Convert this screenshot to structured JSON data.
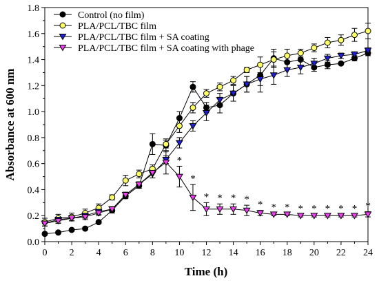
{
  "chart_data": {
    "type": "line",
    "xlabel": "Time (h)",
    "ylabel": "Absorbance at 600 nm",
    "xlim": [
      0,
      24
    ],
    "ylim": [
      0.0,
      1.8
    ],
    "xticks": [
      "0",
      "2",
      "4",
      "6",
      "8",
      "10",
      "12",
      "14",
      "16",
      "18",
      "20",
      "22",
      "24"
    ],
    "yticks": [
      "0.0",
      "0.2",
      "0.4",
      "0.6",
      "0.8",
      "1.0",
      "1.2",
      "1.4",
      "1.6",
      "1.8"
    ],
    "grid": false,
    "legend_position": "top-left",
    "significance_marker": "*",
    "significant_x": [
      10,
      11,
      12,
      13,
      14,
      15,
      16,
      17,
      18,
      19,
      20,
      21,
      22,
      23,
      24
    ],
    "series": [
      {
        "name": "Control (no film)",
        "marker": "circle",
        "color": "#000000",
        "x": [
          0,
          1,
          2,
          3,
          4,
          5,
          6,
          7,
          8,
          9,
          10,
          11,
          12,
          13,
          14,
          15,
          16,
          17,
          18,
          19,
          20,
          21,
          22,
          23,
          24
        ],
        "y": [
          0.06,
          0.07,
          0.09,
          0.1,
          0.15,
          0.24,
          0.35,
          0.43,
          0.75,
          0.74,
          0.95,
          1.19,
          1.03,
          1.05,
          1.14,
          1.21,
          1.28,
          1.41,
          1.38,
          1.4,
          1.34,
          1.36,
          1.37,
          1.41,
          1.45
        ],
        "err": [
          0.01,
          0.01,
          0.01,
          0.01,
          0.01,
          0.02,
          0.02,
          0.02,
          0.08,
          0.05,
          0.05,
          0.04,
          0.04,
          0.06,
          0.06,
          0.06,
          0.08,
          0.07,
          0.05,
          0.05,
          0.03,
          0.03,
          0.01,
          0.02,
          0.02
        ]
      },
      {
        "name": "PLA/PCL/TBC film",
        "marker": "circle",
        "color": "#ffff66",
        "x": [
          0,
          1,
          2,
          3,
          4,
          5,
          6,
          7,
          8,
          9,
          10,
          11,
          12,
          13,
          14,
          15,
          16,
          17,
          18,
          19,
          20,
          21,
          22,
          23,
          24
        ],
        "y": [
          0.15,
          0.18,
          0.19,
          0.22,
          0.26,
          0.34,
          0.47,
          0.52,
          0.56,
          0.75,
          0.89,
          1.03,
          1.14,
          1.19,
          1.24,
          1.32,
          1.36,
          1.4,
          1.43,
          1.45,
          1.49,
          1.53,
          1.55,
          1.59,
          1.62
        ],
        "err": [
          0.03,
          0.03,
          0.03,
          0.03,
          0.03,
          0.02,
          0.04,
          0.03,
          0.03,
          0.03,
          0.05,
          0.04,
          0.03,
          0.03,
          0.03,
          0.02,
          0.06,
          0.06,
          0.05,
          0.03,
          0.03,
          0.04,
          0.04,
          0.05,
          0.06
        ]
      },
      {
        "name": "PLA/PCL/TBC film + SA coating",
        "marker": "triangle-down",
        "color": "#1f1fd6",
        "x": [
          0,
          1,
          2,
          3,
          4,
          5,
          6,
          7,
          8,
          9,
          10,
          11,
          12,
          13,
          14,
          15,
          16,
          17,
          18,
          19,
          20,
          21,
          22,
          23,
          24
        ],
        "y": [
          0.14,
          0.17,
          0.18,
          0.2,
          0.23,
          0.25,
          0.36,
          0.44,
          0.52,
          0.63,
          0.76,
          0.89,
          0.99,
          1.09,
          1.14,
          1.21,
          1.25,
          1.28,
          1.32,
          1.34,
          1.37,
          1.41,
          1.43,
          1.44,
          1.47
        ],
        "err": [
          0.02,
          0.02,
          0.02,
          0.02,
          0.02,
          0.02,
          0.02,
          0.02,
          0.03,
          0.03,
          0.04,
          0.04,
          0.06,
          0.05,
          0.06,
          0.06,
          0.1,
          0.07,
          0.05,
          0.05,
          0.04,
          0.03,
          0.02,
          0.02,
          0.02
        ]
      },
      {
        "name": "PLA/PCL/TBC film + SA coating with phage",
        "marker": "triangle-down",
        "color": "#ee3fee",
        "x": [
          0,
          1,
          2,
          3,
          4,
          5,
          6,
          7,
          8,
          9,
          10,
          11,
          12,
          13,
          14,
          15,
          16,
          17,
          18,
          19,
          20,
          21,
          22,
          23,
          24
        ],
        "y": [
          0.14,
          0.16,
          0.18,
          0.19,
          0.22,
          0.25,
          0.36,
          0.44,
          0.53,
          0.61,
          0.5,
          0.34,
          0.25,
          0.25,
          0.25,
          0.24,
          0.22,
          0.21,
          0.21,
          0.2,
          0.2,
          0.2,
          0.2,
          0.2,
          0.21
        ],
        "err": [
          0.02,
          0.02,
          0.02,
          0.02,
          0.02,
          0.02,
          0.02,
          0.02,
          0.04,
          0.09,
          0.08,
          0.1,
          0.05,
          0.04,
          0.04,
          0.04,
          0.02,
          0.01,
          0.01,
          0.01,
          0.01,
          0.01,
          0.01,
          0.01,
          0.02
        ]
      }
    ]
  }
}
